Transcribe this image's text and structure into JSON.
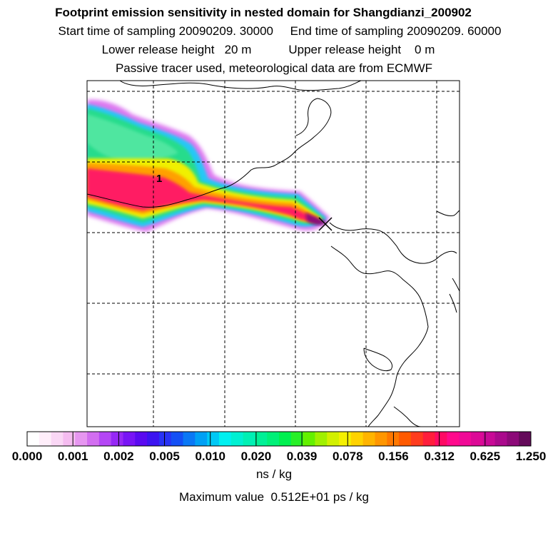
{
  "header": {
    "title": "Footprint emission sensitivity in nested domain for Shangdianzi_200902",
    "line2": "Start time of sampling 20090209. 30000     End time of sampling 20090209. 60000",
    "line3": "Lower release height   20 m           Upper release height    0 m",
    "line4": "Passive tracer used, meteorological data are from ECMWF"
  },
  "map": {
    "plume_max_label": "1",
    "receptor_marker": "x-cross"
  },
  "colorbar": {
    "tick_labels": [
      "0.000",
      "0.001",
      "0.002",
      "0.005",
      "0.010",
      "0.020",
      "0.039",
      "0.078",
      "0.156",
      "0.312",
      "0.625",
      "1.250"
    ],
    "colors": [
      "#ffffff",
      "#ffeefa",
      "#fad7f5",
      "#f5bcf0",
      "#e696f0",
      "#d26ef0",
      "#b446f5",
      "#9628f5",
      "#7814f5",
      "#5a0af0",
      "#3c14f0",
      "#2832f5",
      "#1450f5",
      "#0a78f5",
      "#00a0f5",
      "#00c8f5",
      "#00f0f0",
      "#00f0d2",
      "#00f0b4",
      "#00f096",
      "#00f078",
      "#00f050",
      "#28f028",
      "#64f000",
      "#a0f000",
      "#d2f000",
      "#f5f000",
      "#ffd200",
      "#ffb400",
      "#ff9600",
      "#ff7800",
      "#ff5a00",
      "#ff3c1e",
      "#ff1e3c",
      "#ff0a64",
      "#ff0a8c",
      "#f00a96",
      "#dc0a96",
      "#c80a96",
      "#aa0a8c",
      "#8c0a78",
      "#640a5a"
    ],
    "units": "ns / kg"
  },
  "footer": {
    "max_value": "Maximum value  0.512E+01 ps / kg"
  }
}
